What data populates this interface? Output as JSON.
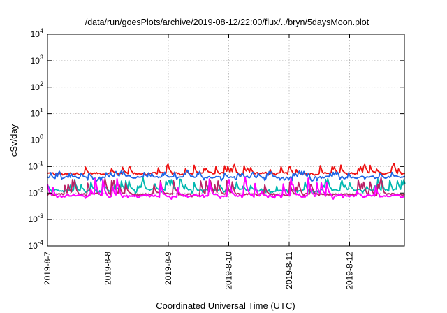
{
  "chart_data": {
    "type": "line",
    "title": "/data/run/goesPlots/archive/2019-08-12/22:00/flux/../bryn/5daysMoon.plot",
    "xlabel": "Coordinated Universal Time (UTC)",
    "ylabel": "cSv/day",
    "yscale": "log",
    "ylim": [
      0.0001,
      10000
    ],
    "xlim": [
      "2019-08-07",
      "2019-08-12 22:00"
    ],
    "grid": true,
    "x_ticks": [
      "2019-8-7",
      "2019-8-8",
      "2019-8-9",
      "2019-8-10",
      "2019-8-11",
      "2019-8-12"
    ],
    "y_ticks": [
      {
        "base": "10",
        "exp": "4"
      },
      {
        "base": "10",
        "exp": "3"
      },
      {
        "base": "10",
        "exp": "2"
      },
      {
        "base": "10",
        "exp": "1"
      },
      {
        "base": "10",
        "exp": "0"
      },
      {
        "base": "10",
        "exp": "-1"
      },
      {
        "base": "10",
        "exp": "-2"
      },
      {
        "base": "10",
        "exp": "-3"
      },
      {
        "base": "10",
        "exp": "-4"
      }
    ],
    "series": [
      {
        "color": "#ee1111",
        "typical": 0.055,
        "low": 0.04,
        "high": 0.16
      },
      {
        "color": "#1e66e6",
        "typical": 0.04,
        "low": 0.018,
        "high": 0.08
      },
      {
        "color": "#00b8b0",
        "typical": 0.013,
        "low": 0.007,
        "high": 0.05
      },
      {
        "color": "#bb2266",
        "typical": 0.009,
        "low": 0.006,
        "high": 0.05
      },
      {
        "color": "#ff00ff",
        "typical": 0.008,
        "low": 0.005,
        "high": 0.06
      }
    ]
  }
}
